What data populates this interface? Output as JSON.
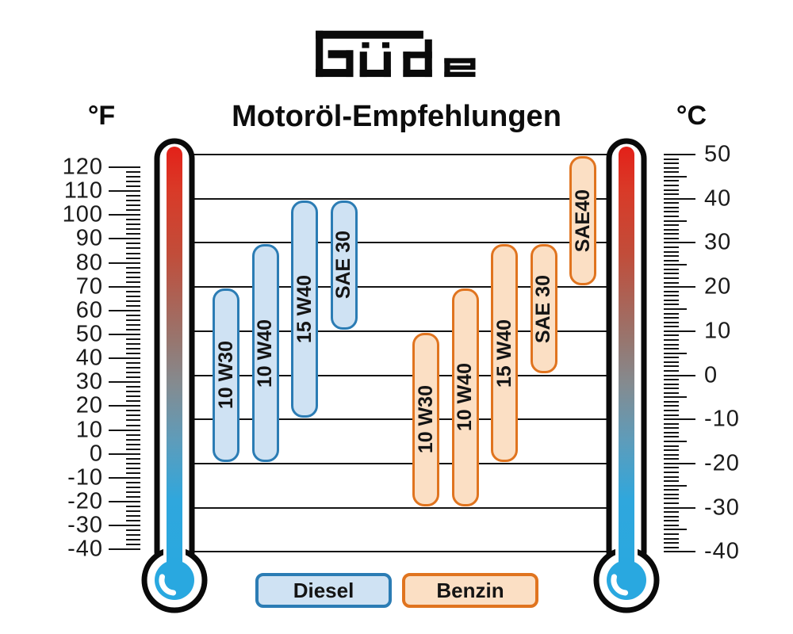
{
  "brand": {
    "name": "Güde"
  },
  "title": "Motoröl-Empfehlungen",
  "fahrenheit_axis": {
    "unit_label": "°F",
    "major_ticks": [
      120,
      110,
      100,
      90,
      80,
      70,
      60,
      50,
      40,
      30,
      20,
      10,
      0,
      -10,
      -20,
      -30,
      -40
    ],
    "minor_step_f": 2
  },
  "celsius_axis": {
    "unit_label": "°C",
    "labeled_ticks": [
      50,
      40,
      30,
      20,
      10,
      0,
      -10,
      -20,
      -30,
      -40
    ],
    "minor_step_c": 1
  },
  "legend": {
    "diesel_label": "Diesel",
    "benzin_label": "Benzin"
  },
  "colors": {
    "diesel_fill": "#cfe2f3",
    "diesel_border": "#2b7cb4",
    "benzin_fill": "#fbdfc4",
    "benzin_border": "#e0741f",
    "thermometer_hot": "#e32119",
    "thermometer_cold": "#29a8e0",
    "grid_line": "#141414"
  },
  "chart_data": {
    "type": "bar",
    "subtype": "temperature-range-bars",
    "title": "Motoröl-Empfehlungen",
    "units": [
      "°F",
      "°C"
    ],
    "celsius_range": [
      -40,
      50
    ],
    "fahrenheit_range": [
      -40,
      120
    ],
    "gridlines_celsius": [
      50,
      40,
      30,
      20,
      10,
      0,
      -10,
      -20,
      -30,
      -40
    ],
    "grid": true,
    "legend_position": "bottom",
    "series": [
      {
        "name": "Diesel",
        "bars": [
          {
            "label": "10 W30",
            "min_c": -20,
            "max_c": 20
          },
          {
            "label": "10 W40",
            "min_c": -20,
            "max_c": 30
          },
          {
            "label": "15 W40",
            "min_c": -10,
            "max_c": 40
          },
          {
            "label": "SAE 30",
            "min_c": 10,
            "max_c": 40
          }
        ]
      },
      {
        "name": "Benzin",
        "bars": [
          {
            "label": "10 W30",
            "min_c": -30,
            "max_c": 10
          },
          {
            "label": "10 W40",
            "min_c": -30,
            "max_c": 20
          },
          {
            "label": "15 W40",
            "min_c": -20,
            "max_c": 30
          },
          {
            "label": "SAE 30",
            "min_c": 0,
            "max_c": 30
          },
          {
            "label": "SAE40",
            "min_c": 20,
            "max_c": 50
          }
        ]
      }
    ]
  }
}
